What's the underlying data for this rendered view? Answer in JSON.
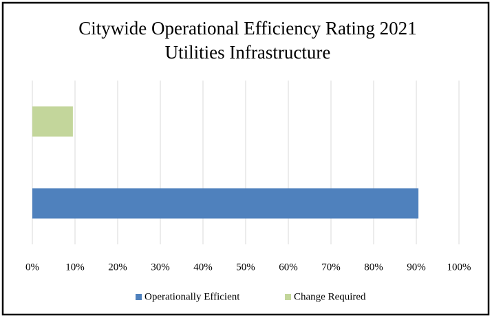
{
  "chart_data": {
    "type": "bar",
    "orientation": "horizontal",
    "title": "Citywide Operational Efficiency Rating 2021",
    "subtitle": "Utilities Infrastructure",
    "series": [
      {
        "name": "Operationally Efficient",
        "color": "#4f81bd",
        "values": [
          90.5
        ]
      },
      {
        "name": "Change Required",
        "color": "#c3d69b",
        "values": [
          9.5
        ]
      }
    ],
    "xlim": [
      0,
      100
    ],
    "xticks": [
      {
        "value": 0,
        "label": "0%"
      },
      {
        "value": 10,
        "label": "10%"
      },
      {
        "value": 20,
        "label": "20%"
      },
      {
        "value": 30,
        "label": "30%"
      },
      {
        "value": 40,
        "label": "40%"
      },
      {
        "value": 50,
        "label": "50%"
      },
      {
        "value": 60,
        "label": "60%"
      },
      {
        "value": 70,
        "label": "70%"
      },
      {
        "value": 80,
        "label": "80%"
      },
      {
        "value": 90,
        "label": "90%"
      },
      {
        "value": 100,
        "label": "100%"
      }
    ],
    "grid": true,
    "legend": "bottom"
  }
}
